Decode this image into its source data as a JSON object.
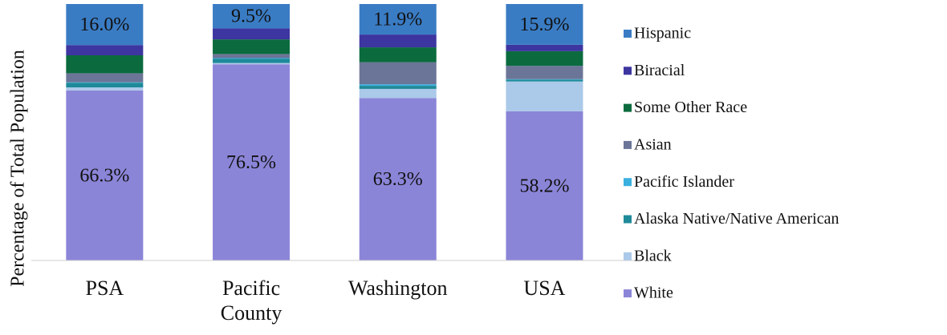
{
  "chart_data": {
    "type": "stacked_bar",
    "y_label": "Percentage of Total Population",
    "categories": [
      "PSA",
      "Pacific County",
      "Washington",
      "USA"
    ],
    "ylim": [
      0,
      100
    ],
    "legend": "right",
    "series": [
      {
        "name": "White",
        "color": "#8b85d8",
        "values": [
          66.3,
          76.5,
          63.3,
          58.2
        ],
        "value_labels": [
          "66.3%",
          "76.5%",
          "63.3%",
          "58.2%"
        ]
      },
      {
        "name": "Black",
        "color": "#abc9e9",
        "values": [
          1.2,
          0.5,
          3.6,
          11.6
        ]
      },
      {
        "name": "Alaska Native/Native American",
        "color": "#1f8a99",
        "values": [
          1.8,
          1.6,
          1.2,
          0.7
        ]
      },
      {
        "name": "Pacific Islander",
        "color": "#3ab0de",
        "values": [
          0.2,
          0.3,
          0.6,
          0.2
        ]
      },
      {
        "name": "Asian",
        "color": "#6b7597",
        "values": [
          3.5,
          1.6,
          8.6,
          5.2
        ]
      },
      {
        "name": "Some Other Race",
        "color": "#0b6b3e",
        "values": [
          7.0,
          5.7,
          5.8,
          5.7
        ]
      },
      {
        "name": "Biracial",
        "color": "#3d35a0",
        "values": [
          4.0,
          4.3,
          5.0,
          2.5
        ]
      },
      {
        "name": "Hispanic",
        "color": "#3a7cc4",
        "values": [
          16.0,
          9.5,
          11.9,
          15.9
        ],
        "value_labels": [
          "16.0%",
          "9.5%",
          "11.9%",
          "15.9%"
        ]
      }
    ]
  }
}
